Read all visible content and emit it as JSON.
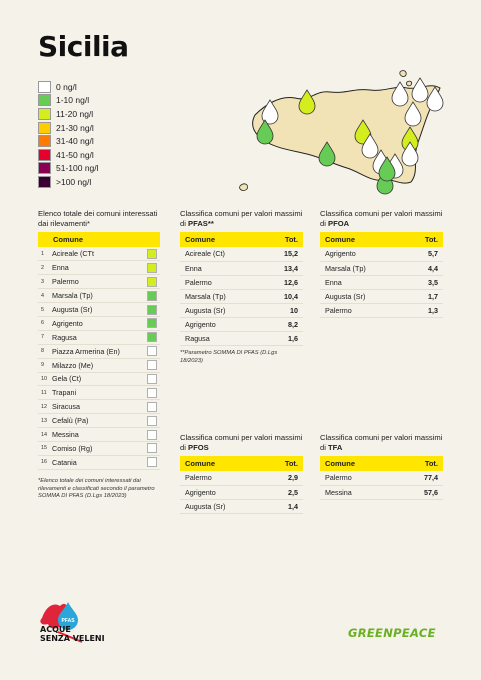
{
  "title": "Sicilia",
  "legend": [
    {
      "label": "0 ng/l",
      "color": "#ffffff"
    },
    {
      "label": "1-10 ng/l",
      "color": "#66cc55"
    },
    {
      "label": "11-20 ng/l",
      "color": "#d4ed1f"
    },
    {
      "label": "21-30 ng/l",
      "color": "#ffcc00"
    },
    {
      "label": "31-40 ng/l",
      "color": "#ff7a00"
    },
    {
      "label": "41-50 ng/l",
      "color": "#e6002e"
    },
    {
      "label": "51-100 ng/l",
      "color": "#8a0055"
    },
    {
      "label": ">100 ng/l",
      "color": "#3a0033"
    }
  ],
  "list_title": "Elenco totale dei comuni interessati dai rilevamenti*",
  "list_header": "Comune",
  "list": [
    {
      "num": "1",
      "name": "Acireale (CTt",
      "color": "#d4ed1f"
    },
    {
      "num": "2",
      "name": "Enna",
      "color": "#d4ed1f"
    },
    {
      "num": "3",
      "name": "Palermo",
      "color": "#d4ed1f"
    },
    {
      "num": "4",
      "name": "Marsala (Tp)",
      "color": "#66cc55"
    },
    {
      "num": "5",
      "name": "Augusta (Sr)",
      "color": "#66cc55"
    },
    {
      "num": "6",
      "name": "Agrigento",
      "color": "#66cc55"
    },
    {
      "num": "7",
      "name": "Ragusa",
      "color": "#66cc55"
    },
    {
      "num": "8",
      "name": "Piazza Armerina (En)",
      "color": "#ffffff"
    },
    {
      "num": "9",
      "name": "Milazzo (Me)",
      "color": "#ffffff"
    },
    {
      "num": "10",
      "name": "Gela (Ct)",
      "color": "#ffffff"
    },
    {
      "num": "11",
      "name": "Trapani",
      "color": "#ffffff"
    },
    {
      "num": "12",
      "name": "Siracusa",
      "color": "#ffffff"
    },
    {
      "num": "13",
      "name": "Cefalù (Pa)",
      "color": "#ffffff"
    },
    {
      "num": "14",
      "name": "Messina",
      "color": "#ffffff"
    },
    {
      "num": "15",
      "name": "Comiso (Rg)",
      "color": "#ffffff"
    },
    {
      "num": "16",
      "name": "Catania",
      "color": "#ffffff"
    }
  ],
  "list_note": "*Elenco totale dei comuni interessati dai rilevamenti e classificati secondo il parametro SOMMA DI PFAS (D.Lgs 18/2023)",
  "pfas": {
    "title_prefix": "Classifica comuni per valori massimi di ",
    "title_bold": "PFAS**",
    "col_comune": "Comune",
    "col_tot": "Tot.",
    "rows": [
      {
        "name": "Acireale (Ct)",
        "value": "15,2"
      },
      {
        "name": "Enna",
        "value": "13,4"
      },
      {
        "name": "Palermo",
        "value": "12,6"
      },
      {
        "name": "Marsala (Tp)",
        "value": "10,4"
      },
      {
        "name": "Augusta (Sr)",
        "value": "10"
      },
      {
        "name": "Agrigento",
        "value": "8,2"
      },
      {
        "name": "Ragusa",
        "value": "1,6"
      }
    ],
    "note": "**Parametro SOMMA DI PFAS (D.Lgs 18/2023)"
  },
  "pfoa": {
    "title_prefix": "Classifica comuni per valori massimi di ",
    "title_bold": "PFOA",
    "col_comune": "Comune",
    "col_tot": "Tot.",
    "rows": [
      {
        "name": "Agrigento",
        "value": "5,7"
      },
      {
        "name": "Marsala (Tp)",
        "value": "4,4"
      },
      {
        "name": "Enna",
        "value": "3,5"
      },
      {
        "name": "Augusta (Sr)",
        "value": "1,7"
      },
      {
        "name": "Palermo",
        "value": "1,3"
      }
    ]
  },
  "pfos": {
    "title_prefix": "Classifica comuni per valori massimi di ",
    "title_bold": "PFOS",
    "col_comune": "Comune",
    "col_tot": "Tot.",
    "rows": [
      {
        "name": "Palermo",
        "value": "2,9"
      },
      {
        "name": "Agrigento",
        "value": "2,5"
      },
      {
        "name": "Augusta (Sr)",
        "value": "1,4"
      }
    ]
  },
  "tfa": {
    "title_prefix": "Classifica comuni per valori massimi di ",
    "title_bold": "TFA",
    "col_comune": "Comune",
    "col_tot": "Tot.",
    "rows": [
      {
        "name": "Palermo",
        "value": "77,4"
      },
      {
        "name": "Messina",
        "value": "57,6"
      }
    ]
  },
  "brand_left": {
    "line1": "ACQUE",
    "line2": "SENZA VELENI",
    "badge": "PFAS"
  },
  "brand_right": "GREENPEACE"
}
